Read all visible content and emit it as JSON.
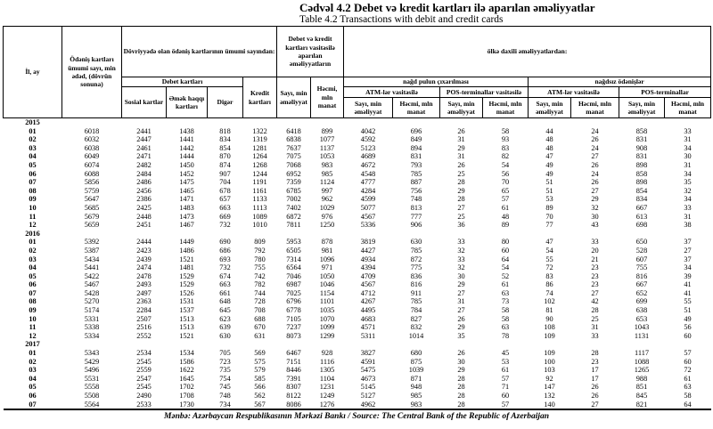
{
  "title_az": "Cədvəl 4.2 Debet və kredit kartları ilə aparılan əməliyyatlar",
  "title_en": "Table 4.2 Transactions with debit and credit cards",
  "source_note": "Mənbə: Azərbaycan Respublikasının Mərkəzi Bankı / Source: The Central Bank of the Republic of Azerbaijan",
  "table": {
    "headers": {
      "il_ay": "İl, ay",
      "total_cards": "Ödəniş kartları ümumi sayı, min ədəd, (dövrün sonuna)",
      "in_circulation": "Dövriyyədə olan ödəniş kartlarının ümumi sayından:",
      "debit_cards": "Debet kartları",
      "social_cards": "Sosial kartlar",
      "salary_cards": "Əmək haqqı kartları",
      "other": "Digər",
      "credit_cards": "Kredit kartları",
      "dc_operations": "Debet və kredit kartları vasitəsilə aparılan əməliyyatların",
      "count": "Sayı, min əməliyyat",
      "volume": "Həcmi, mln manat",
      "domestic": "ölkə daxili əməliyyatlardan:",
      "cash_withdrawal": "nağd pulun çıxarılması",
      "noncash_payments": "nağdsız ödənişlər",
      "via_atm": "ATM-lər vasitəsilə",
      "via_pos": "POS-terminallar vasitəsilə",
      "pos_terminals": "POS-terminallar"
    },
    "sections": [
      {
        "year": "2015",
        "rows": [
          [
            "01",
            6018,
            2441,
            1438,
            818,
            1322,
            6418,
            899,
            4042,
            696,
            26,
            58,
            44,
            24,
            858,
            33
          ],
          [
            "02",
            6032,
            2447,
            1441,
            834,
            1319,
            6838,
            1077,
            4592,
            849,
            31,
            93,
            48,
            26,
            831,
            31
          ],
          [
            "03",
            6038,
            2461,
            1442,
            854,
            1281,
            7637,
            1137,
            5123,
            894,
            29,
            83,
            48,
            24,
            908,
            34
          ],
          [
            "04",
            6049,
            2471,
            1444,
            870,
            1264,
            7075,
            1053,
            4689,
            831,
            31,
            82,
            47,
            27,
            831,
            30
          ],
          [
            "05",
            6074,
            2482,
            1450,
            874,
            1268,
            7068,
            983,
            4672,
            793,
            26,
            54,
            49,
            26,
            898,
            31
          ],
          [
            "06",
            6088,
            2484,
            1452,
            907,
            1244,
            6952,
            985,
            4548,
            785,
            25,
            56,
            49,
            24,
            858,
            34
          ],
          [
            "07",
            5856,
            2486,
            1475,
            704,
            1191,
            7359,
            1124,
            4777,
            887,
            28,
            70,
            51,
            26,
            898,
            35
          ],
          [
            "08",
            5759,
            2456,
            1465,
            678,
            1161,
            6785,
            997,
            4284,
            756,
            29,
            65,
            51,
            27,
            854,
            32
          ],
          [
            "09",
            5647,
            2386,
            1471,
            657,
            1133,
            7002,
            962,
            4599,
            748,
            28,
            57,
            53,
            29,
            834,
            34
          ],
          [
            "10",
            5685,
            2425,
            1483,
            663,
            1113,
            7402,
            1029,
            5077,
            813,
            27,
            61,
            89,
            32,
            667,
            33
          ],
          [
            "11",
            5679,
            2448,
            1473,
            669,
            1089,
            6872,
            976,
            4567,
            777,
            25,
            48,
            70,
            30,
            613,
            31
          ],
          [
            "12",
            5659,
            2451,
            1467,
            732,
            1010,
            7811,
            1250,
            5336,
            906,
            36,
            89,
            77,
            43,
            698,
            38
          ]
        ]
      },
      {
        "year": "2016",
        "rows": [
          [
            "01",
            5392,
            2444,
            1449,
            690,
            809,
            5953,
            878,
            3819,
            630,
            33,
            80,
            47,
            33,
            650,
            37
          ],
          [
            "02",
            5387,
            2423,
            1486,
            686,
            792,
            6505,
            981,
            4427,
            785,
            32,
            60,
            54,
            20,
            528,
            27
          ],
          [
            "03",
            5434,
            2439,
            1521,
            693,
            780,
            7314,
            1096,
            4934,
            872,
            33,
            64,
            55,
            21,
            607,
            37
          ],
          [
            "04",
            5441,
            2474,
            1481,
            732,
            755,
            6564,
            971,
            4394,
            775,
            32,
            54,
            72,
            23,
            755,
            34
          ],
          [
            "05",
            5422,
            2478,
            1529,
            674,
            742,
            7046,
            1050,
            4709,
            836,
            30,
            52,
            83,
            23,
            816,
            39
          ],
          [
            "06",
            5467,
            2493,
            1529,
            663,
            782,
            6987,
            1046,
            4567,
            816,
            29,
            61,
            86,
            23,
            667,
            41
          ],
          [
            "07",
            5428,
            2497,
            1526,
            661,
            744,
            7025,
            1154,
            4712,
            911,
            27,
            63,
            74,
            27,
            652,
            41
          ],
          [
            "08",
            5270,
            2363,
            1531,
            648,
            728,
            6796,
            1101,
            4267,
            785,
            31,
            73,
            102,
            42,
            699,
            55
          ],
          [
            "09",
            5174,
            2284,
            1537,
            645,
            708,
            6778,
            1035,
            4495,
            784,
            27,
            58,
            81,
            28,
            638,
            51
          ],
          [
            "10",
            5331,
            2507,
            1513,
            623,
            688,
            7105,
            1070,
            4683,
            827,
            26,
            58,
            90,
            25,
            653,
            49
          ],
          [
            "11",
            5338,
            2516,
            1513,
            639,
            670,
            7237,
            1099,
            4571,
            832,
            29,
            63,
            108,
            31,
            1043,
            56
          ],
          [
            "12",
            5334,
            2552,
            1521,
            630,
            631,
            8073,
            1299,
            5311,
            1014,
            35,
            78,
            109,
            33,
            1131,
            60
          ]
        ]
      },
      {
        "year": "2017",
        "rows": [
          [
            "01",
            5343,
            2534,
            1534,
            705,
            569,
            6467,
            928,
            3827,
            680,
            26,
            45,
            109,
            28,
            1117,
            57
          ],
          [
            "02",
            5429,
            2545,
            1586,
            723,
            575,
            7151,
            1116,
            4591,
            875,
            30,
            53,
            100,
            23,
            1088,
            60
          ],
          [
            "03",
            5496,
            2559,
            1622,
            735,
            579,
            8446,
            1305,
            5475,
            1039,
            29,
            61,
            103,
            17,
            1265,
            72
          ],
          [
            "04",
            5531,
            2547,
            1645,
            754,
            585,
            7391,
            1104,
            4673,
            871,
            28,
            57,
            92,
            17,
            988,
            61
          ],
          [
            "05",
            5558,
            2545,
            1702,
            745,
            566,
            8307,
            1231,
            5145,
            948,
            28,
            71,
            147,
            26,
            851,
            63
          ],
          [
            "06",
            5508,
            2490,
            1708,
            748,
            562,
            8122,
            1249,
            5127,
            985,
            28,
            60,
            132,
            26,
            845,
            58
          ],
          [
            "07",
            5564,
            2533,
            1730,
            734,
            567,
            8086,
            1276,
            4962,
            983,
            28,
            57,
            140,
            27,
            821,
            64
          ]
        ]
      }
    ]
  }
}
